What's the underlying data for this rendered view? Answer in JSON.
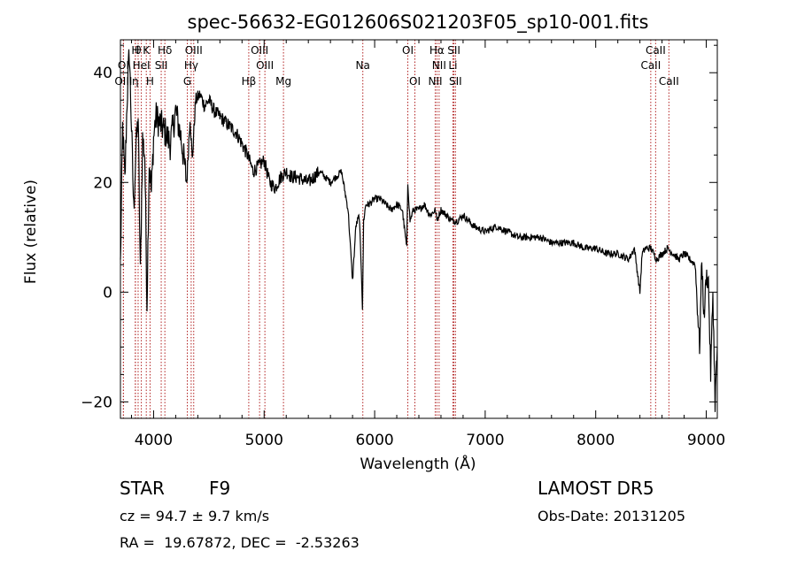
{
  "chart_data": {
    "type": "line",
    "title": "spec-56632-EG012606S021203F05_sp10-001.fits",
    "xlabel": "Wavelength (Å)",
    "ylabel": "Flux (relative)",
    "xlim": [
      3700,
      9100
    ],
    "ylim": [
      -23,
      46
    ],
    "x_ticks": [
      4000,
      5000,
      6000,
      7000,
      8000,
      9000
    ],
    "y_ticks": [
      -20,
      0,
      20,
      40
    ],
    "grid": false,
    "line_color": "#000000",
    "marker_color": "#b22222",
    "lines": [
      {
        "label": "H",
        "wl": 3835,
        "row": 0
      },
      {
        "label": "θ",
        "wl": 3860,
        "row": 0
      },
      {
        "label": "K",
        "wl": 3934,
        "row": 0
      },
      {
        "label": "Hδ",
        "wl": 4102,
        "row": 0
      },
      {
        "label": "OIII",
        "wl": 4363,
        "row": 0
      },
      {
        "label": "OIII",
        "wl": 4959,
        "row": 0
      },
      {
        "label": "OI",
        "wl": 6300,
        "row": 0
      },
      {
        "label": "Hα",
        "wl": 6563,
        "row": 0
      },
      {
        "label": "SII",
        "wl": 6717,
        "row": 0
      },
      {
        "label": "CaII",
        "wl": 8542,
        "row": 0
      },
      {
        "label": "OI",
        "wl": 3727,
        "row": 1
      },
      {
        "label": "HeI",
        "wl": 3889,
        "row": 1
      },
      {
        "label": "SII",
        "wl": 4069,
        "row": 1
      },
      {
        "label": "Hγ",
        "wl": 4340,
        "row": 1
      },
      {
        "label": "OIII",
        "wl": 5007,
        "row": 1
      },
      {
        "label": "Na",
        "wl": 5893,
        "row": 1
      },
      {
        "label": "NII",
        "wl": 6583,
        "row": 1
      },
      {
        "label": "Li",
        "wl": 6708,
        "row": 1
      },
      {
        "label": "CaII",
        "wl": 8498,
        "row": 1
      },
      {
        "label": "OIII",
        "wl": 3727,
        "row": 2
      },
      {
        "label": "η",
        "wl": 3835,
        "row": 2
      },
      {
        "label": "H",
        "wl": 3968,
        "row": 2
      },
      {
        "label": "G",
        "wl": 4305,
        "row": 2
      },
      {
        "label": "Hβ",
        "wl": 4861,
        "row": 2
      },
      {
        "label": "Mg",
        "wl": 5175,
        "row": 2
      },
      {
        "label": "OI",
        "wl": 6364,
        "row": 2
      },
      {
        "label": "NII",
        "wl": 6548,
        "row": 2
      },
      {
        "label": "SII",
        "wl": 6731,
        "row": 2
      },
      {
        "label": "CaII",
        "wl": 8662,
        "row": 2
      }
    ],
    "series": [
      {
        "values_x": [
          3700,
          3720,
          3740,
          3760,
          3780,
          3800,
          3820,
          3840,
          3860,
          3880,
          3900,
          3920,
          3940,
          3960,
          3980,
          4000,
          4020,
          4050,
          4080,
          4110,
          4150,
          4200,
          4250,
          4300,
          4330,
          4350,
          4380,
          4420,
          4460,
          4500,
          4550,
          4600,
          4650,
          4700,
          4750,
          4800,
          4850,
          4900,
          4950,
          5000,
          5050,
          5100,
          5150,
          5200,
          5250,
          5300,
          5400,
          5500,
          5600,
          5700,
          5760,
          5800,
          5830,
          5860,
          5880,
          5890,
          5900,
          5920,
          5950,
          6000,
          6050,
          6100,
          6150,
          6200,
          6250,
          6290,
          6300,
          6320,
          6350,
          6400,
          6450,
          6500,
          6550,
          6563,
          6580,
          6600,
          6650,
          6700,
          6750,
          6800,
          6900,
          7000,
          7100,
          7200,
          7300,
          7400,
          7500,
          7600,
          7700,
          7800,
          7900,
          8000,
          8100,
          8200,
          8300,
          8350,
          8400,
          8420,
          8450,
          8500,
          8550,
          8600,
          8650,
          8700,
          8750,
          8800,
          8850,
          8900,
          8940,
          8960,
          8980,
          9000,
          9020,
          9040,
          9060,
          9080,
          9100
        ],
        "values_y": [
          5,
          30,
          20,
          35,
          44,
          30,
          15,
          26,
          32,
          3,
          28,
          25,
          -2,
          24,
          18,
          28,
          32,
          31,
          30,
          29,
          27,
          33,
          28,
          20,
          32,
          24,
          35,
          36,
          34,
          35,
          33,
          32,
          31,
          30,
          29,
          27,
          25,
          22,
          23,
          24,
          20,
          19,
          21,
          22,
          21,
          21,
          20,
          22,
          20,
          22,
          15,
          2,
          12,
          14,
          4,
          -3,
          13,
          16,
          16,
          17,
          17,
          16,
          15,
          16,
          15,
          8,
          20,
          13,
          15,
          15,
          16,
          14,
          15,
          13,
          14,
          15,
          14,
          13,
          13,
          14,
          12,
          11,
          12,
          11,
          10,
          10,
          10,
          9,
          9,
          9,
          8,
          8,
          7,
          7,
          6,
          8,
          0,
          7,
          8,
          8,
          6,
          7,
          8,
          7,
          6,
          7,
          6,
          5,
          -10,
          6,
          -5,
          3,
          2,
          -15,
          0,
          -20,
          -10
        ]
      }
    ],
    "object_class": "STAR",
    "subclass": "F9",
    "survey": "LAMOST DR5",
    "cz_text": "cz = 94.7 ± 9.7 km/s",
    "obs_date_text": "Obs-Date: 20131205",
    "radec_text": "RA =  19.67872, DEC =  -2.53263"
  }
}
